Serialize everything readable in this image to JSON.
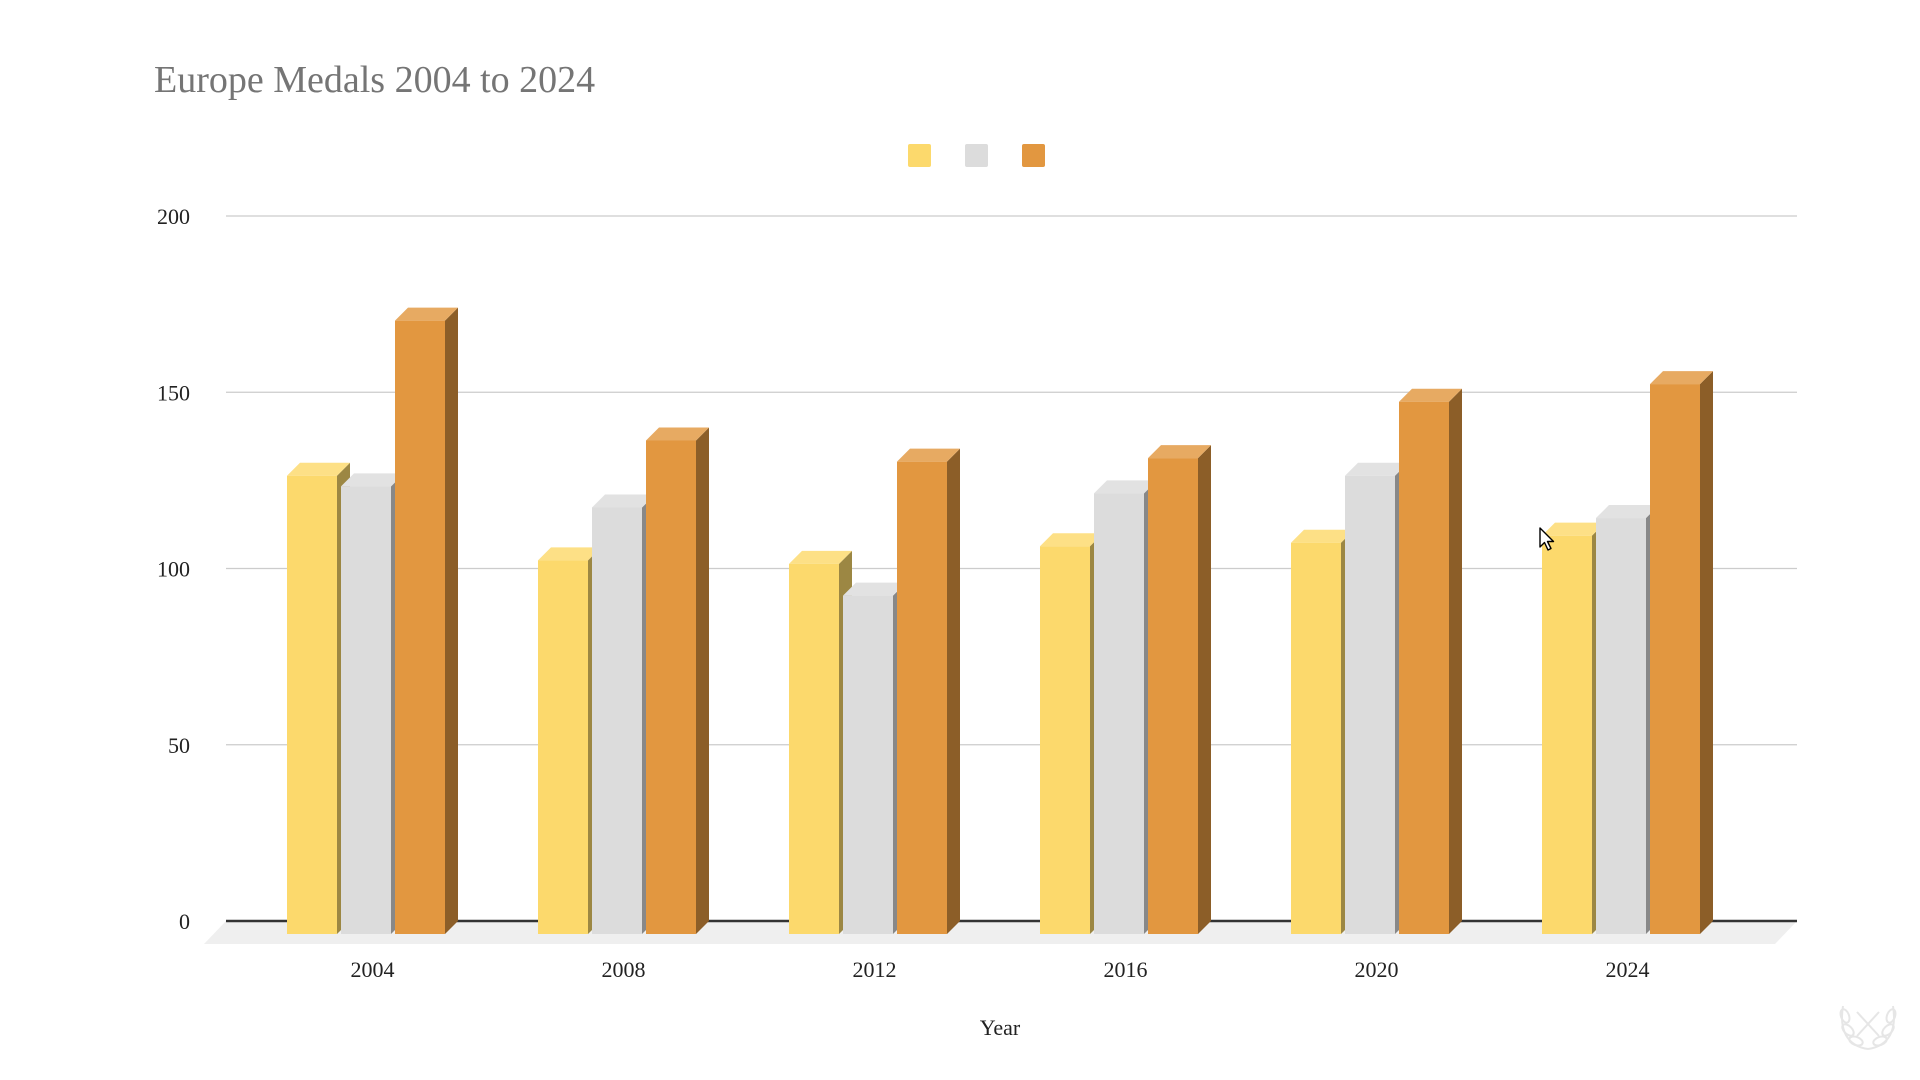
{
  "chart_data": {
    "type": "bar",
    "style": "3d-grouped",
    "title": "Europe Medals 2004 to 2024",
    "xlabel": "Year",
    "ylabel": "",
    "categories": [
      "2004",
      "2008",
      "2012",
      "2016",
      "2020",
      "2024"
    ],
    "series": [
      {
        "values": [
          130,
          106,
          105,
          110,
          111,
          113
        ],
        "color": "#FCD96C"
      },
      {
        "values": [
          127,
          121,
          96,
          125,
          130,
          118
        ],
        "color": "#DCDCDC"
      },
      {
        "values": [
          174,
          140,
          134,
          135,
          151,
          156
        ],
        "color": "#E29740"
      }
    ],
    "ylim": [
      0,
      200
    ],
    "yticks": [
      "0",
      "50",
      "100",
      "150",
      "200"
    ],
    "grid": true,
    "legend_position": "top-center"
  },
  "cursor_icon": "arrow-pointer-icon",
  "watermark_icon": "olympic-wreath-logo-icon"
}
